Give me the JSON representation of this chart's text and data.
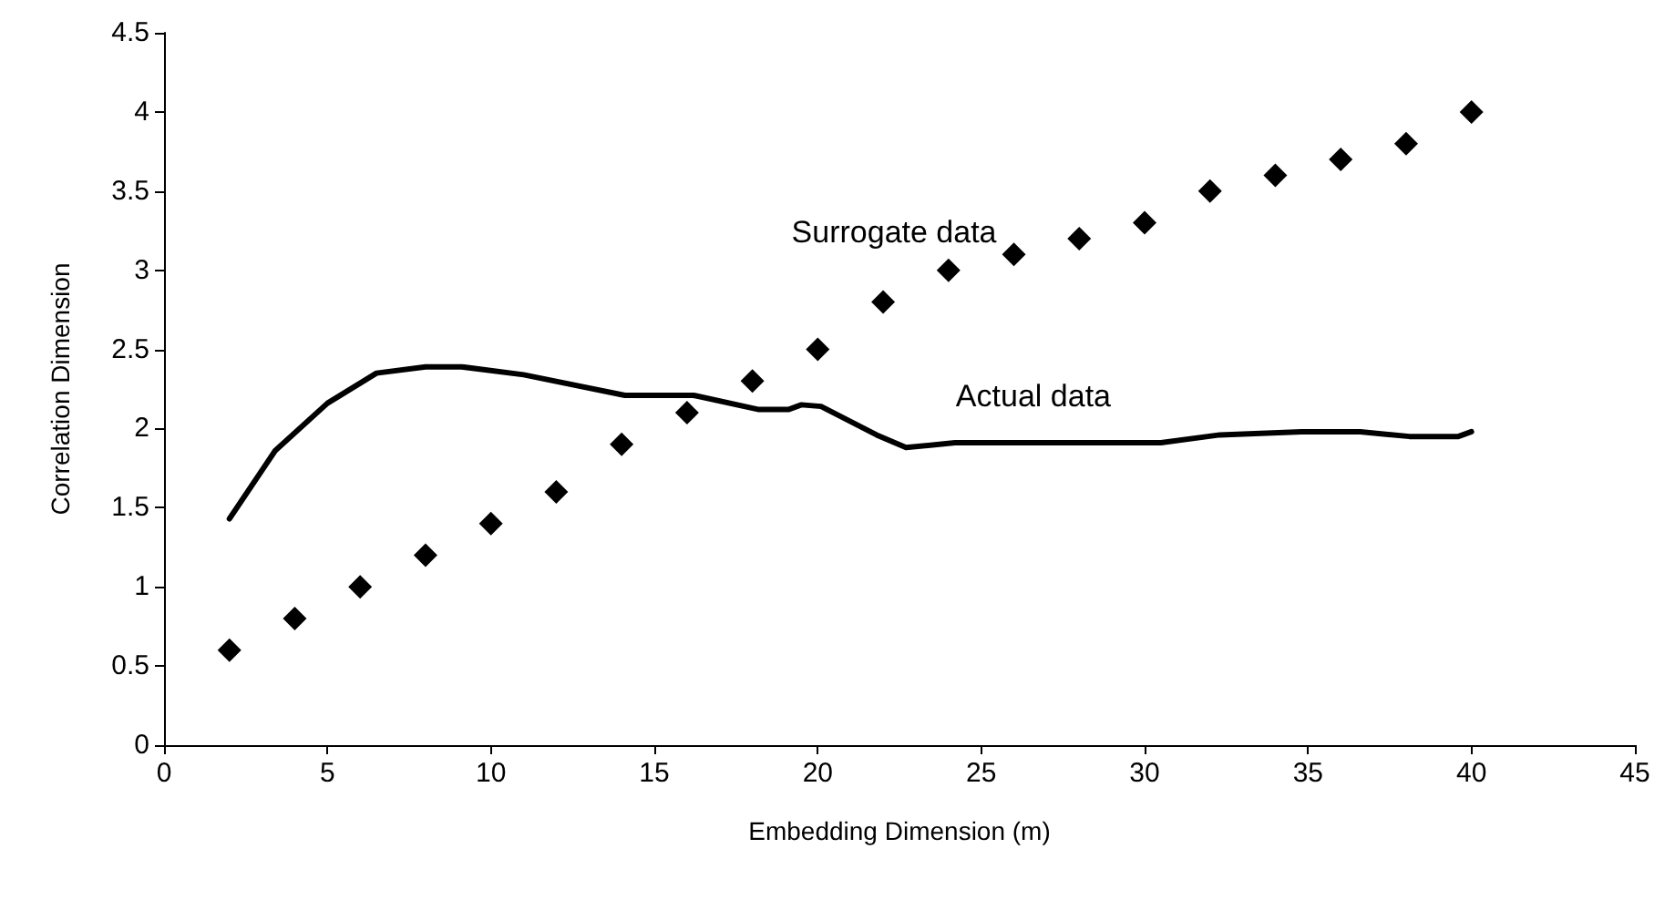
{
  "chart_data": {
    "type": "scatter",
    "xlabel": "Embedding Dimension (m)",
    "ylabel": "Correlation Dimension",
    "xlim": [
      0,
      45
    ],
    "xticks": [
      0,
      5,
      10,
      15,
      20,
      25,
      30,
      35,
      40,
      45
    ],
    "ylim": [
      0,
      4.5
    ],
    "yticks": [
      0,
      0.5,
      1,
      1.5,
      2,
      2.5,
      3,
      3.5,
      4,
      4.5
    ],
    "grid": false,
    "legend": false,
    "series": [
      {
        "name": "Surrogate data",
        "marker": "diamond",
        "color": "#000000",
        "x": [
          2,
          4,
          6,
          8,
          10,
          12,
          14,
          16,
          18,
          20,
          22,
          24,
          26,
          28,
          30,
          32,
          34,
          36,
          38,
          40
        ],
        "values": [
          0.6,
          0.8,
          1.0,
          1.2,
          1.4,
          1.6,
          1.9,
          2.1,
          2.3,
          2.5,
          2.8,
          3.0,
          3.1,
          3.2,
          3.3,
          3.5,
          3.6,
          3.7,
          3.8,
          4.0
        ]
      },
      {
        "name": "Actual data",
        "type": "line",
        "marker": "none",
        "line_style": "solid",
        "color": "#000000",
        "x": [
          2,
          3.4,
          5,
          6.5,
          8,
          9.1,
          11,
          14.1,
          16.2,
          18.2,
          19.1,
          19.5,
          20.1,
          21.8,
          22.7,
          24.2,
          30.5,
          32.3,
          34.8,
          36.6,
          38.1,
          39.6,
          40
        ],
        "values": [
          1.43,
          1.86,
          2.16,
          2.35,
          2.39,
          2.39,
          2.34,
          2.21,
          2.21,
          2.12,
          2.12,
          2.15,
          2.14,
          1.96,
          1.88,
          1.91,
          1.91,
          1.96,
          1.98,
          1.98,
          1.95,
          1.95,
          1.98
        ]
      }
    ]
  }
}
